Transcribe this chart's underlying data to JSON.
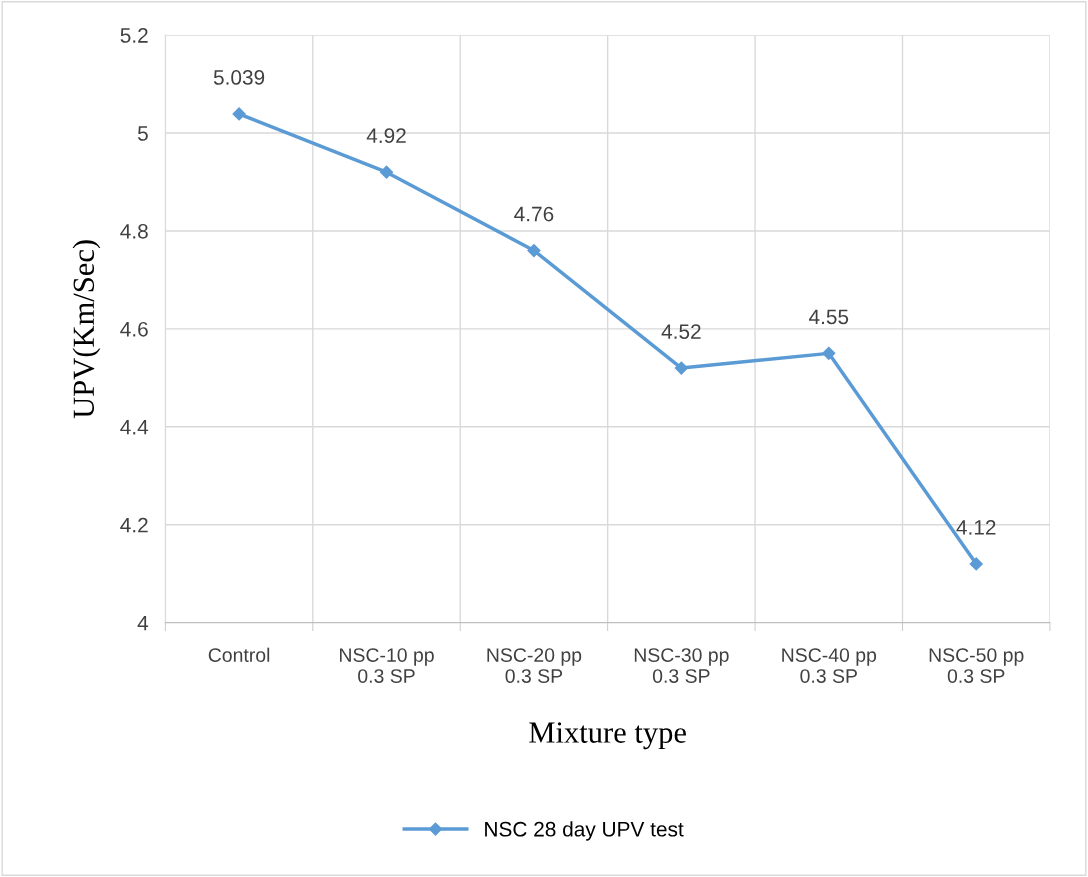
{
  "chart_data": {
    "type": "line",
    "xlabel": "Mixture type",
    "ylabel": "UPV(Km/Sec)",
    "categories": [
      "Control",
      "NSC-10 pp\n0.3 SP",
      "NSC-20 pp\n0.3 SP",
      "NSC-30 pp\n0.3 SP",
      "NSC-40 pp\n0.3 SP",
      "NSC-50 pp\n0.3 SP"
    ],
    "series": [
      {
        "name": "NSC 28 day UPV test",
        "color": "#5b9bd5",
        "values": [
          5.039,
          4.92,
          4.76,
          4.52,
          4.55,
          4.12
        ]
      }
    ],
    "ylim": [
      4,
      5.2
    ],
    "yticks": [
      4,
      4.2,
      4.4,
      4.6,
      4.8,
      5,
      5.2
    ],
    "grid": true,
    "legend": "bottom",
    "marker": "diamond",
    "line_style": "solid",
    "data_labels": true
  }
}
